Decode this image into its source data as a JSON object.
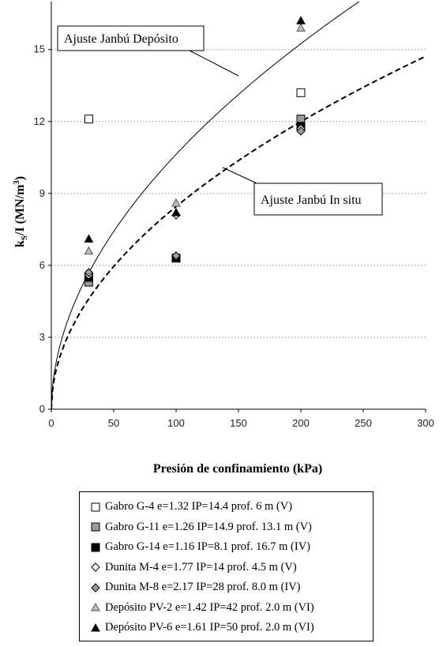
{
  "chart_data": {
    "type": "scatter",
    "xlabel": "Presión de confinamiento (kPa)",
    "ylabel": {
      "main": "k",
      "sub": "S",
      "mid": "/I (MN/m",
      "sup": "3",
      "end": ")"
    },
    "xlim": [
      0,
      300
    ],
    "ylim": [
      0,
      17
    ],
    "xticks": [
      "0",
      "50",
      "100",
      "150",
      "200",
      "250",
      "300"
    ],
    "yticks": [
      "0",
      "3",
      "6",
      "9",
      "12",
      "15"
    ],
    "grid": "horizontal dashed",
    "legend_position": "bottom",
    "series": [
      {
        "name": "Gabro G-4 e=1.32 IP=14.4 prof. 6 m (V)",
        "marker": "square-open",
        "points": [
          [
            30,
            12.1
          ],
          [
            200,
            13.2
          ]
        ]
      },
      {
        "name": "Gabro G-11 e=1.26 IP=14.9 prof. 13.1 m (V)",
        "marker": "square-gray",
        "points": [
          [
            30,
            5.3
          ],
          [
            200,
            12.1
          ]
        ]
      },
      {
        "name": "Gabro G-14 e=1.16 IP=8.1 prof. 16.7 m (IV)",
        "marker": "square-black",
        "points": [
          [
            30,
            5.5
          ],
          [
            100,
            6.3
          ],
          [
            200,
            11.8
          ]
        ]
      },
      {
        "name": "Dunita M-4 e=1.77 IP=14 prof. 4.5 m (V)",
        "marker": "diamond-open",
        "points": [
          [
            30,
            5.6
          ],
          [
            100,
            8.1
          ],
          [
            200,
            11.7
          ]
        ]
      },
      {
        "name": "Dunita M-8 e=2.17 IP=28 prof. 8.0 m (IV)",
        "marker": "diamond-gray",
        "points": [
          [
            30,
            5.7
          ],
          [
            100,
            6.4
          ],
          [
            200,
            11.6
          ]
        ]
      },
      {
        "name": "Depósito PV-2 e=1.42 IP=42 prof. 2.0 m (VI)",
        "marker": "triangle-gray",
        "points": [
          [
            30,
            6.6
          ],
          [
            100,
            8.6
          ],
          [
            200,
            15.9
          ]
        ]
      },
      {
        "name": "Depósito PV-6 e=1.61 IP=50 prof. 2.0 m (VI)",
        "marker": "triangle-black",
        "points": [
          [
            30,
            7.1
          ],
          [
            100,
            8.2
          ],
          [
            200,
            16.2
          ]
        ]
      }
    ],
    "fit_curves": [
      {
        "label": "Ajuste Janbú Depósito",
        "style": "solid",
        "a": 1.063,
        "n": 0.52
      },
      {
        "label": "Ajuste Janbú In situ",
        "style": "dashed",
        "a": 0.845,
        "n": 0.505
      }
    ]
  }
}
